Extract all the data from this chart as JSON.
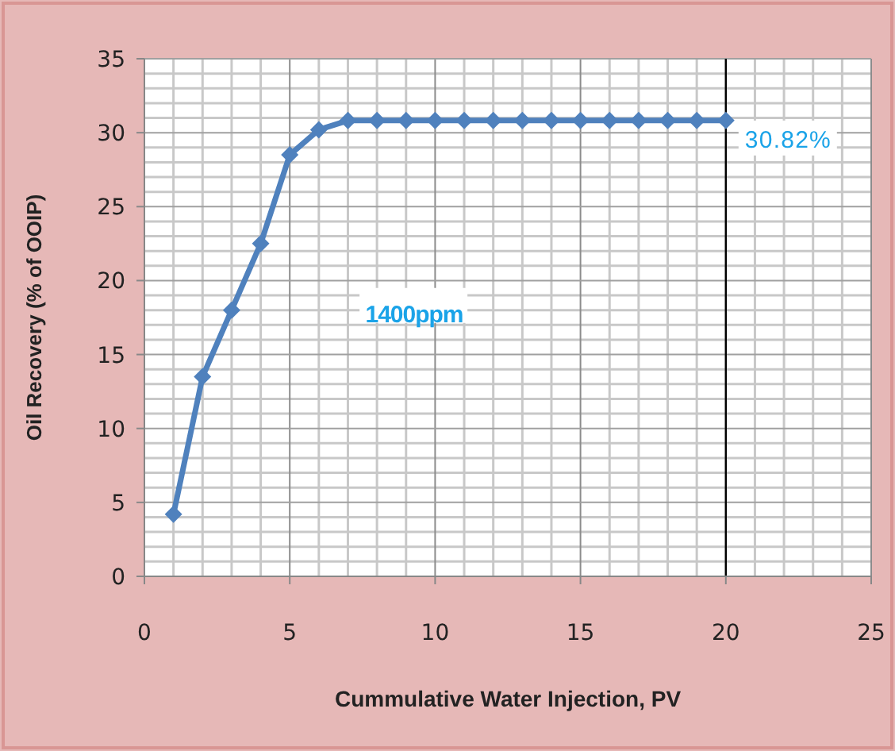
{
  "chart_data": {
    "type": "line",
    "xlabel": "Cummulative Water Injection, PV",
    "ylabel": "Oil Recovery (% of OOIP)",
    "x": [
      1,
      2,
      3,
      4,
      5,
      6,
      7,
      8,
      9,
      10,
      11,
      12,
      13,
      14,
      15,
      16,
      17,
      18,
      19,
      20
    ],
    "series": [
      {
        "color": "#4f81bd",
        "values": [
          4.2,
          13.5,
          18,
          22.5,
          28.5,
          30.2,
          30.82,
          30.82,
          30.82,
          30.82,
          30.82,
          30.82,
          30.82,
          30.82,
          30.82,
          30.82,
          30.82,
          30.82,
          30.82,
          30.82
        ]
      }
    ],
    "xlim": [
      0,
      25
    ],
    "xticks": [
      0,
      5,
      10,
      15,
      20,
      25
    ],
    "ylim": [
      0,
      35
    ],
    "yticks": [
      0,
      5,
      10,
      15,
      20,
      25,
      30,
      35
    ],
    "grid": true,
    "marker": "diamond",
    "line_style": "solid",
    "ref_lines": [
      {
        "axis": "x",
        "value": 20,
        "color": "#000000"
      }
    ],
    "annotations": [
      {
        "text": "30.82%",
        "x": 20,
        "y": 30.82
      },
      "1400ppm"
    ]
  }
}
